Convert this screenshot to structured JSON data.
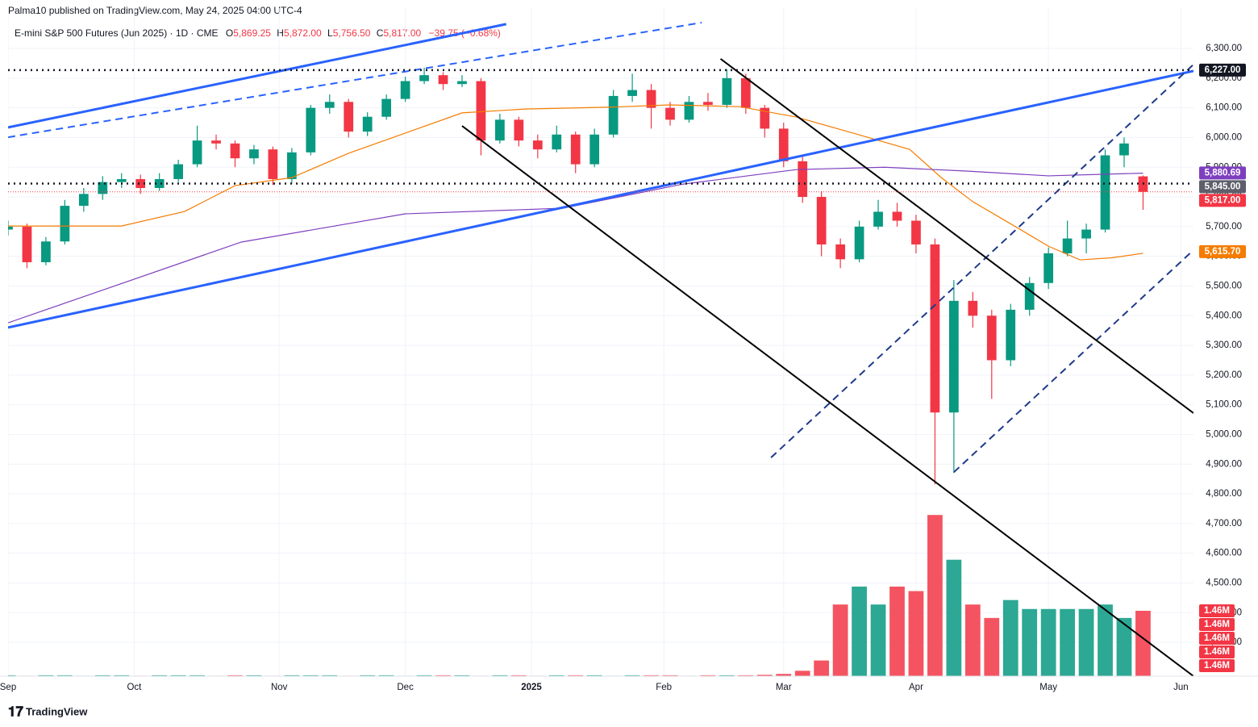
{
  "header": {
    "published": "Palma10 published on TradingView.com, May 24, 2025 04:00 UTC-4",
    "symbol": "E-mini S&P 500 Futures (Jun 2025) · 1D · CME",
    "open": "5,869.25",
    "high": "5,872.00",
    "low": "5,756.50",
    "close": "5,817.00",
    "change": "−39.75 (−0.68%)",
    "o": "O",
    "h": "H",
    "l": "L",
    "c": "C"
  },
  "footer": {
    "brand": "TradingView"
  },
  "chart_data": {
    "type": "candlestick",
    "up_color": "#089981",
    "down_color": "#f23645",
    "xlim": [
      0,
      188
    ],
    "ylim": [
      4186,
      6436
    ],
    "xticks": [
      {
        "value": 0,
        "label": "Sep"
      },
      {
        "value": 20,
        "label": "Oct"
      },
      {
        "value": 43,
        "label": "Nov"
      },
      {
        "value": 63,
        "label": "Dec"
      },
      {
        "value": 83,
        "label": "2025"
      },
      {
        "value": 104,
        "label": "Feb"
      },
      {
        "value": 123,
        "label": "Mar"
      },
      {
        "value": 144,
        "label": "Apr"
      },
      {
        "value": 165,
        "label": "May"
      },
      {
        "value": 186,
        "label": "Jun"
      }
    ],
    "yticks": [
      {
        "value": 4300,
        "label": "4,300.00"
      },
      {
        "value": 4400,
        "label": "4,400.00"
      },
      {
        "value": 4500,
        "label": "4,500.00"
      },
      {
        "value": 4600,
        "label": "4,600.00"
      },
      {
        "value": 4700,
        "label": "4,700.00"
      },
      {
        "value": 4800,
        "label": "4,800.00"
      },
      {
        "value": 4900,
        "label": "4,900.00"
      },
      {
        "value": 5000,
        "label": "5,000.00"
      },
      {
        "value": 5100,
        "label": "5,100.00"
      },
      {
        "value": 5200,
        "label": "5,200.00"
      },
      {
        "value": 5300,
        "label": "5,300.00"
      },
      {
        "value": 5400,
        "label": "5,400.00"
      },
      {
        "value": 5500,
        "label": "5,500.00"
      },
      {
        "value": 5600,
        "label": "5,600.00"
      },
      {
        "value": 5700,
        "label": "5,700.00"
      },
      {
        "value": 5800,
        "label": "5,800.00"
      },
      {
        "value": 5900,
        "label": "5,900.00"
      },
      {
        "value": 6000,
        "label": "6,000.00"
      },
      {
        "value": 6100,
        "label": "6,100.00"
      },
      {
        "value": 6200,
        "label": "6,200.00"
      },
      {
        "value": 6300,
        "label": "6,300.00"
      }
    ],
    "grid": true,
    "x": [
      0,
      3,
      6,
      9,
      12,
      15,
      18,
      21,
      24,
      27,
      30,
      33,
      36,
      39,
      42,
      45,
      48,
      51,
      54,
      57,
      60,
      63,
      66,
      69,
      72,
      75,
      78,
      81,
      84,
      87,
      90,
      93,
      96,
      99,
      102,
      105,
      108,
      111,
      114,
      117,
      120,
      123,
      126,
      129,
      132,
      135,
      138,
      141,
      144,
      147,
      150,
      153,
      156,
      159,
      162,
      165,
      168,
      171,
      174,
      177,
      180
    ],
    "candles": [
      [
        5690,
        5720,
        5670,
        5700
      ],
      [
        5700,
        5710,
        5560,
        5580
      ],
      [
        5580,
        5665,
        5570,
        5650
      ],
      [
        5650,
        5790,
        5640,
        5770
      ],
      [
        5770,
        5830,
        5750,
        5810
      ],
      [
        5810,
        5870,
        5790,
        5850
      ],
      [
        5850,
        5880,
        5830,
        5860
      ],
      [
        5860,
        5875,
        5810,
        5830
      ],
      [
        5830,
        5880,
        5820,
        5860
      ],
      [
        5860,
        5925,
        5850,
        5910
      ],
      [
        5910,
        6040,
        5900,
        5990
      ],
      [
        5990,
        6010,
        5960,
        5980
      ],
      [
        5980,
        5990,
        5900,
        5930
      ],
      [
        5930,
        5975,
        5910,
        5960
      ],
      [
        5960,
        5970,
        5840,
        5860
      ],
      [
        5860,
        5965,
        5845,
        5950
      ],
      [
        5950,
        6110,
        5940,
        6100
      ],
      [
        6100,
        6145,
        6080,
        6120
      ],
      [
        6120,
        6130,
        6000,
        6020
      ],
      [
        6020,
        6085,
        6005,
        6070
      ],
      [
        6070,
        6145,
        6060,
        6130
      ],
      [
        6130,
        6205,
        6120,
        6190
      ],
      [
        6190,
        6235,
        6180,
        6210
      ],
      [
        6210,
        6220,
        6160,
        6180
      ],
      [
        6180,
        6210,
        6170,
        6190
      ],
      [
        6190,
        6200,
        5940,
        5990
      ],
      [
        5990,
        6080,
        5980,
        6060
      ],
      [
        6060,
        6070,
        5970,
        5990
      ],
      [
        5990,
        6010,
        5930,
        5960
      ],
      [
        5960,
        6040,
        5950,
        6010
      ],
      [
        6010,
        6020,
        5880,
        5910
      ],
      [
        5910,
        6030,
        5900,
        6010
      ],
      [
        6010,
        6160,
        6000,
        6140
      ],
      [
        6140,
        6215,
        6120,
        6160
      ],
      [
        6160,
        6180,
        6030,
        6100
      ],
      [
        6100,
        6120,
        6040,
        6060
      ],
      [
        6060,
        6140,
        6050,
        6120
      ],
      [
        6120,
        6150,
        6090,
        6110
      ],
      [
        6110,
        6230,
        6100,
        6200
      ],
      [
        6200,
        6215,
        6080,
        6100
      ],
      [
        6100,
        6110,
        6000,
        6030
      ],
      [
        6030,
        6050,
        5900,
        5920
      ],
      [
        5920,
        5940,
        5780,
        5800
      ],
      [
        5800,
        5820,
        5600,
        5640
      ],
      [
        5640,
        5660,
        5560,
        5590
      ],
      [
        5590,
        5720,
        5580,
        5700
      ],
      [
        5700,
        5790,
        5690,
        5750
      ],
      [
        5750,
        5780,
        5700,
        5720
      ],
      [
        5720,
        5740,
        5610,
        5640
      ],
      [
        5640,
        5660,
        4832,
        5074
      ],
      [
        5074,
        5520,
        4870,
        5450
      ],
      [
        5450,
        5480,
        5360,
        5400
      ],
      [
        5400,
        5420,
        5120,
        5250
      ],
      [
        5250,
        5440,
        5230,
        5420
      ],
      [
        5420,
        5530,
        5400,
        5510
      ],
      [
        5510,
        5630,
        5490,
        5610
      ],
      [
        5610,
        5720,
        5600,
        5660
      ],
      [
        5660,
        5710,
        5610,
        5690
      ],
      [
        5690,
        5960,
        5680,
        5940
      ],
      [
        5940,
        6000,
        5900,
        5980
      ],
      [
        5869.25,
        5872,
        5756.5,
        5817
      ]
    ],
    "volumes": [
      0.02,
      0.01,
      0.02,
      0.02,
      0.01,
      0.02,
      0.02,
      0.01,
      0.02,
      0.02,
      0.02,
      0.01,
      0.02,
      0.02,
      0.01,
      0.02,
      0.02,
      0.02,
      0.01,
      0.02,
      0.02,
      0.01,
      0.02,
      0.02,
      0.02,
      0.01,
      0.02,
      0.02,
      0.01,
      0.02,
      0.02,
      0.02,
      0.01,
      0.02,
      0.02,
      0.02,
      0.01,
      0.02,
      0.02,
      0.02,
      0.03,
      0.05,
      0.12,
      0.35,
      1.6,
      2.0,
      1.6,
      2.0,
      1.9,
      3.6,
      2.6,
      1.6,
      1.3,
      1.7,
      1.5,
      1.5,
      1.5,
      1.5,
      1.6,
      1.3,
      1.46
    ],
    "volume_label": "1.46M",
    "series": [
      {
        "color": "#f57c00",
        "x": [
          0,
          18,
          28,
          36,
          45,
          54,
          63,
          72,
          82,
          95,
          105,
          116,
          125,
          134,
          143,
          148,
          153,
          160,
          165,
          170,
          175,
          180
        ],
        "values": [
          5702,
          5702,
          5751,
          5838,
          5865,
          5947,
          6015,
          6083,
          6096,
          6102,
          6110,
          6104,
          6069,
          6015,
          5960,
          5865,
          5784,
          5697,
          5634,
          5588,
          5595,
          5610
        ]
      },
      {
        "color": "#7e3fbf",
        "x": [
          0,
          37,
          63,
          88,
          107,
          125,
          139,
          152,
          165,
          180
        ],
        "values": [
          5376,
          5648,
          5743,
          5762,
          5843,
          5892,
          5900,
          5887,
          5871,
          5880
        ]
      }
    ],
    "lines": [
      {
        "color": "#2962ff",
        "dashed": false,
        "x": [
          0,
          79
        ],
        "y": [
          6034,
          6382
        ]
      },
      {
        "color": "#2962ff",
        "dashed": false,
        "x": [
          0,
          188
        ],
        "y": [
          5360,
          6224
        ]
      },
      {
        "color": "#2962ff",
        "dashed": true,
        "x": [
          0,
          110
        ],
        "y": [
          6001,
          6387
        ]
      },
      {
        "color": "#1e3a8a",
        "dashed": true,
        "x": [
          121,
          188
        ],
        "y": [
          4922,
          6246
        ]
      },
      {
        "color": "#1e3a8a",
        "dashed": true,
        "x": [
          150,
          188
        ],
        "y": [
          4873,
          5621
        ]
      },
      {
        "color": "#000000",
        "dashed": false,
        "x": [
          72,
          188
        ],
        "y": [
          6039,
          4186
        ]
      },
      {
        "color": "#000000",
        "dashed": false,
        "x": [
          113,
          188
        ],
        "y": [
          6265,
          5072
        ]
      }
    ],
    "hlines": [
      6227,
      5845
    ],
    "price_labels": [
      {
        "value": 6227,
        "label": "6,227.00",
        "color": "#131722"
      },
      {
        "value": 5880.69,
        "label": "5,880.69",
        "color": "#7e3fbf"
      },
      {
        "value": 5845,
        "label": "5,845.00",
        "color": "#5d606b"
      },
      {
        "value": 5817,
        "label": "5,817.00",
        "color": "#f23645"
      },
      {
        "value": 5615.7,
        "label": "5,615.70",
        "color": "#f57c00"
      }
    ]
  }
}
